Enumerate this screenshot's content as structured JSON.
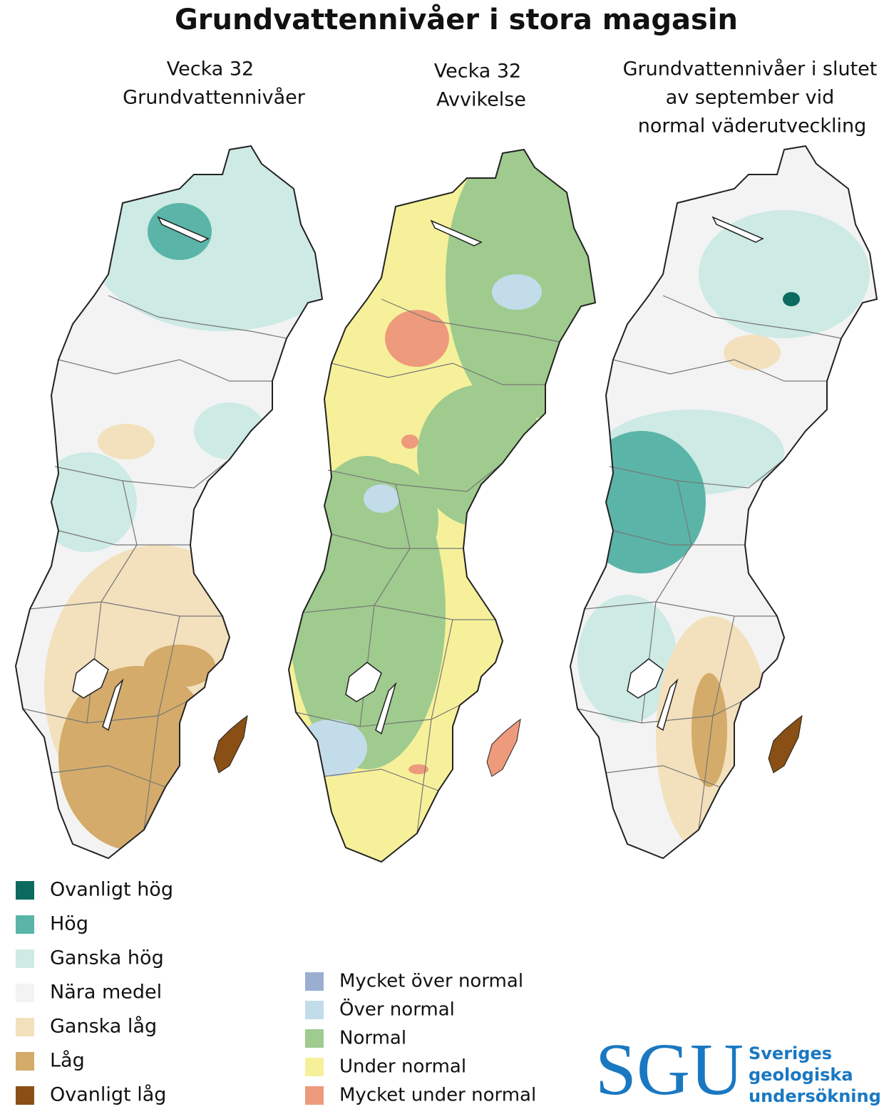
{
  "title": "Grundvattennivåer i stora magasin",
  "maps": [
    {
      "title_lines": [
        "Vecka 32",
        "Grundvattennivåer"
      ]
    },
    {
      "title_lines": [
        "Vecka 32",
        "Avvikelse"
      ]
    },
    {
      "title_lines": [
        "Grundvattennivåer i slutet",
        "av september vid",
        "normal väderutveckling"
      ]
    }
  ],
  "legend_levels": [
    {
      "label": "Ovanligt hög",
      "color": "#0b6b60"
    },
    {
      "label": "Hög",
      "color": "#5ab5a8"
    },
    {
      "label": "Ganska hög",
      "color": "#cdeae4"
    },
    {
      "label": "Nära medel",
      "color": "#f3f3f3"
    },
    {
      "label": "Ganska låg",
      "color": "#f3e0bd"
    },
    {
      "label": "Låg",
      "color": "#d4ab6a"
    },
    {
      "label": "Ovanligt låg",
      "color": "#8a4f14"
    }
  ],
  "legend_deviation": [
    {
      "label": "Mycket över normal",
      "color": "#9aaed2"
    },
    {
      "label": "Över normal",
      "color": "#c2dcea"
    },
    {
      "label": "Normal",
      "color": "#9fcb8e"
    },
    {
      "label": "Under normal",
      "color": "#f6f09a"
    },
    {
      "label": "Mycket under normal",
      "color": "#ee9a7c"
    }
  ],
  "logo": {
    "abbr": "SGU",
    "name_lines": [
      "Sveriges",
      "geologiska",
      "undersökning"
    ]
  }
}
